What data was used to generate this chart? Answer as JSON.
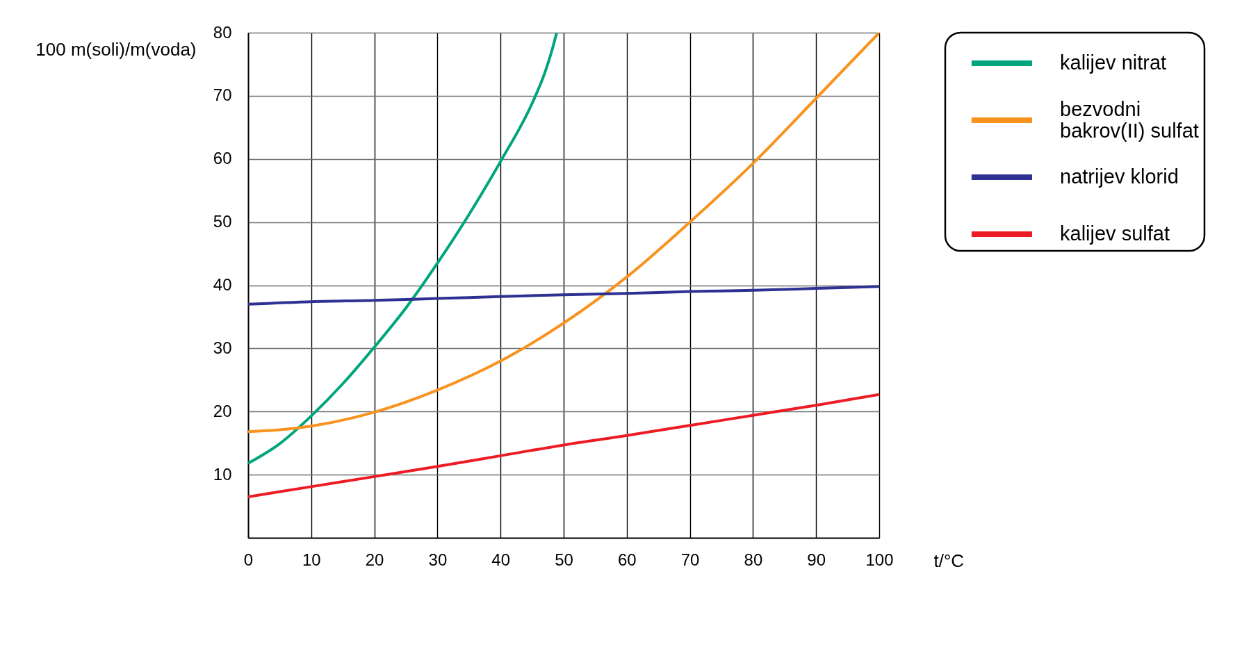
{
  "chart_data": {
    "type": "line",
    "xlabel": "t/°C",
    "ylabel": "100 m(soli)/m(voda)",
    "xlim": [
      0,
      100
    ],
    "xticks": [
      0,
      10,
      20,
      30,
      40,
      50,
      60,
      70,
      80,
      90,
      100
    ],
    "ylim": [
      0,
      80
    ],
    "yticks": [
      10,
      20,
      30,
      40,
      50,
      60,
      70,
      80
    ],
    "grid": true,
    "legend": "top right",
    "line_style": "solid",
    "series": [
      {
        "name": "kalijev nitrat",
        "color": "#00a57c",
        "x": [
          0,
          5,
          10,
          15,
          20,
          25,
          30,
          35,
          40,
          45,
          47,
          48,
          48.9
        ],
        "values": [
          11.8,
          14.9,
          19.3,
          24.4,
          30.2,
          36.4,
          43.5,
          51.2,
          59.6,
          68.8,
          73.6,
          76.7,
          80
        ]
      },
      {
        "name": "bezvodni bakrov(II) sulfat",
        "color": "#f7931e",
        "x": [
          0,
          5,
          10,
          20,
          30,
          40,
          50,
          60,
          70,
          80,
          90,
          100
        ],
        "values": [
          16.8,
          17.1,
          17.7,
          19.9,
          23.4,
          28.0,
          34.0,
          41.3,
          50.0,
          59.3,
          69.6,
          80.0
        ]
      },
      {
        "name": "natrijev klorid",
        "color": "#2e3192",
        "x": [
          0,
          10,
          20,
          30,
          40,
          50,
          60,
          70,
          80,
          90,
          100
        ],
        "values": [
          37.0,
          37.4,
          37.6,
          37.9,
          38.2,
          38.5,
          38.7,
          39.0,
          39.2,
          39.5,
          39.8
        ]
      },
      {
        "name": "kalijev sulfat",
        "color": "#ed1c24",
        "x": [
          0,
          10,
          20,
          30,
          40,
          50,
          60,
          70,
          80,
          90,
          100
        ],
        "values": [
          6.5,
          8.1,
          9.7,
          11.3,
          13.0,
          14.7,
          16.2,
          17.8,
          19.4,
          21.0,
          22.7
        ]
      }
    ]
  }
}
